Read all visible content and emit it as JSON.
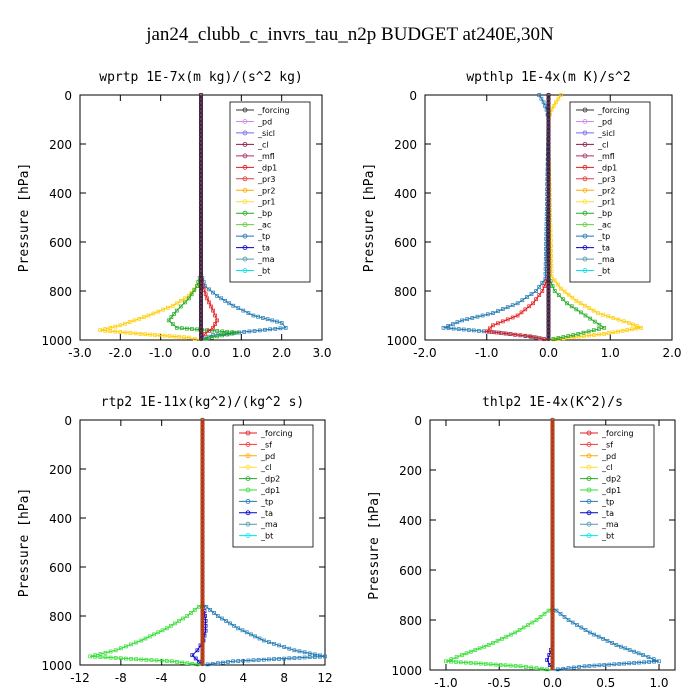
{
  "figure_title": "jan24_clubb_c_invrs_tau_n2p  BUDGET at240E,30N",
  "chart_data": [
    {
      "type": "line",
      "title": "wprtp   1E-7x(m kg)/(s^2 kg)",
      "ylabel": "Pressure [hPa]",
      "xlim": [
        -3.0,
        3.0
      ],
      "ylim": [
        1000,
        0
      ],
      "xticks": [
        "-3.0",
        "-2.0",
        "-1.0",
        "0.0",
        "1.0",
        "2.0",
        "3.0"
      ],
      "xtick_values": [
        -3,
        -2,
        -1,
        0,
        1,
        2,
        3
      ],
      "yticks": [
        "0",
        "200",
        "400",
        "600",
        "800",
        "1000"
      ],
      "ytick_values": [
        0,
        200,
        400,
        600,
        800,
        1000
      ],
      "legend": [
        "_forcing",
        "_pd",
        "_sicl",
        "_cl",
        "_mfl",
        "_dp1",
        "_pr3",
        "_pr2",
        "_pr1",
        "_bp",
        "_ac",
        "_tp",
        "_ta",
        "_ma",
        "_bt"
      ],
      "series": [
        {
          "name": "_pr2",
          "color": "#ffcc00",
          "pressure": [
            730,
            780,
            820,
            860,
            900,
            940,
            960,
            975,
            990,
            1000
          ],
          "values": [
            0,
            -0.1,
            -0.3,
            -0.7,
            -1.3,
            -2.0,
            -2.5,
            -1.5,
            -0.3,
            0
          ]
        },
        {
          "name": "_tp",
          "color": "#1f78b4",
          "pressure": [
            730,
            780,
            820,
            860,
            900,
            930,
            950,
            965,
            980,
            1000
          ],
          "values": [
            0,
            0.1,
            0.4,
            0.8,
            1.3,
            2.0,
            2.1,
            1.2,
            0.3,
            0
          ]
        },
        {
          "name": "_ac",
          "color": "#22aa22",
          "pressure": [
            730,
            780,
            830,
            880,
            920,
            950,
            970,
            985,
            1000
          ],
          "values": [
            0,
            -0.1,
            -0.3,
            -0.6,
            -0.8,
            -0.6,
            0.9,
            0.4,
            0
          ]
        },
        {
          "name": "_pr3",
          "color": "#e41a1c",
          "pressure": [
            730,
            780,
            830,
            880,
            920,
            950,
            975,
            1000
          ],
          "values": [
            0,
            0.05,
            0.15,
            0.3,
            0.4,
            0.3,
            0.1,
            0
          ]
        },
        {
          "name": "_mfl",
          "color": "#8b1a4a",
          "pressure": [
            0,
            200,
            400,
            600,
            800,
            900,
            1000
          ],
          "values": [
            0,
            0,
            0,
            0,
            0,
            0,
            0
          ]
        }
      ]
    },
    {
      "type": "line",
      "title": "wpthlp   1E-4x(m K)/s^2",
      "ylabel": "Pressure [hPa]",
      "xlim": [
        -2.0,
        2.0
      ],
      "ylim": [
        1000,
        0
      ],
      "xticks": [
        "-2.0",
        "-1.0",
        "0.0",
        "1.0",
        "2.0"
      ],
      "xtick_values": [
        -2,
        -1,
        0,
        1,
        2
      ],
      "yticks": [
        "0",
        "200",
        "400",
        "600",
        "800",
        "1000"
      ],
      "ytick_values": [
        0,
        200,
        400,
        600,
        800,
        1000
      ],
      "legend": [
        "_forcing",
        "_pd",
        "_sicl",
        "_cl",
        "_mfl",
        "_dp1",
        "_pr3",
        "_pr2",
        "_pr1",
        "_bp",
        "_ac",
        "_tp",
        "_ta",
        "_ma",
        "_bt"
      ],
      "series": [
        {
          "name": "_pr2",
          "color": "#ffcc00",
          "pressure": [
            0,
            30,
            60,
            100,
            200,
            740,
            790,
            840,
            890,
            930,
            950,
            975,
            1000
          ],
          "values": [
            0.2,
            0.12,
            0.05,
            0,
            0,
            0.05,
            0.2,
            0.45,
            0.8,
            1.3,
            1.5,
            0.9,
            0
          ]
        },
        {
          "name": "_tp",
          "color": "#1f78b4",
          "pressure": [
            0,
            30,
            60,
            100,
            750,
            800,
            850,
            890,
            920,
            950,
            970,
            990,
            1000
          ],
          "values": [
            -0.15,
            -0.08,
            -0.03,
            0,
            -0.05,
            -0.2,
            -0.5,
            -0.9,
            -1.4,
            -1.7,
            -0.8,
            -0.2,
            0
          ]
        },
        {
          "name": "_ac",
          "color": "#22aa22",
          "pressure": [
            740,
            800,
            850,
            900,
            950,
            980,
            1000
          ],
          "values": [
            0,
            0.1,
            0.3,
            0.6,
            0.9,
            0.4,
            0
          ]
        },
        {
          "name": "_pr3",
          "color": "#e41a1c",
          "pressure": [
            740,
            800,
            850,
            900,
            940,
            965,
            985,
            1000
          ],
          "values": [
            0,
            -0.1,
            -0.25,
            -0.5,
            -0.9,
            -1.0,
            -0.3,
            0
          ]
        },
        {
          "name": "_mfl",
          "color": "#8b1a4a",
          "pressure": [
            0,
            200,
            400,
            600,
            800,
            900,
            1000
          ],
          "values": [
            0,
            0,
            0,
            0,
            0,
            0,
            0
          ]
        }
      ]
    },
    {
      "type": "line",
      "title": "rtp2   1E-11x(kg^2)/(kg^2 s)",
      "ylabel": "Pressure [hPa]",
      "xlim": [
        -12,
        12
      ],
      "ylim": [
        1000,
        0
      ],
      "xticks": [
        "-12",
        "-8",
        "-4",
        "0",
        "4",
        "8",
        "12"
      ],
      "xtick_values": [
        -12,
        -8,
        -4,
        0,
        4,
        8,
        12
      ],
      "yticks": [
        "0",
        "200",
        "400",
        "600",
        "800",
        "1000"
      ],
      "ytick_values": [
        0,
        200,
        400,
        600,
        800,
        1000
      ],
      "legend": [
        "_forcing",
        "_sf",
        "_pd",
        "_cl",
        "_dp2",
        "_dp1",
        "_tp",
        "_ta",
        "_ma",
        "_bt"
      ],
      "series": [
        {
          "name": "_dp1",
          "color": "#33dd33",
          "pressure": [
            750,
            800,
            850,
            900,
            940,
            965,
            985,
            1000
          ],
          "values": [
            0,
            -1.5,
            -3.5,
            -6,
            -8.5,
            -11,
            -3,
            0
          ]
        },
        {
          "name": "_tp",
          "color": "#1f78b4",
          "pressure": [
            750,
            800,
            850,
            900,
            940,
            965,
            985,
            1000
          ],
          "values": [
            0,
            1.5,
            3.5,
            6,
            9,
            12,
            3,
            0
          ]
        },
        {
          "name": "_ta",
          "color": "#0000cc",
          "pressure": [
            780,
            820,
            860,
            900,
            940,
            960,
            1000
          ],
          "values": [
            0.2,
            0.3,
            0.3,
            0.1,
            -0.5,
            -1.0,
            0
          ]
        },
        {
          "name": "_forcing",
          "color": "#e41a1c",
          "pressure": [
            0,
            200,
            400,
            600,
            800,
            900,
            1000
          ],
          "values": [
            0,
            0,
            0,
            0,
            0,
            0,
            0
          ]
        }
      ]
    },
    {
      "type": "line",
      "title": "thlp2   1E-4x(K^2)/s",
      "ylabel": "Pressure [hPa]",
      "xlim": [
        -1.15,
        1.15
      ],
      "ylim": [
        1000,
        0
      ],
      "xticks": [
        "-1.0",
        "-0.5",
        "0.0",
        "0.5",
        "1.0"
      ],
      "xtick_values": [
        -1.0,
        -0.5,
        0,
        0.5,
        1.0
      ],
      "yticks": [
        "0",
        "200",
        "400",
        "600",
        "800",
        "1000"
      ],
      "ytick_values": [
        0,
        200,
        400,
        600,
        800,
        1000
      ],
      "legend": [
        "_forcing",
        "_sf",
        "_pd",
        "_cl",
        "_dp2",
        "_dp1",
        "_tp",
        "_ta",
        "_ma",
        "_bt"
      ],
      "series": [
        {
          "name": "_dp1",
          "color": "#33dd33",
          "pressure": [
            750,
            800,
            850,
            900,
            940,
            965,
            985,
            1000
          ],
          "values": [
            0,
            -0.15,
            -0.35,
            -0.6,
            -0.85,
            -1.0,
            -0.3,
            0
          ]
        },
        {
          "name": "_tp",
          "color": "#1f78b4",
          "pressure": [
            750,
            800,
            850,
            900,
            940,
            965,
            985,
            1000
          ],
          "values": [
            0,
            0.15,
            0.35,
            0.6,
            0.85,
            1.0,
            0.3,
            0
          ]
        },
        {
          "name": "_ta",
          "color": "#0000cc",
          "pressure": [
            900,
            940,
            960,
            1000
          ],
          "values": [
            0,
            -0.03,
            -0.05,
            0
          ]
        },
        {
          "name": "_forcing",
          "color": "#e41a1c",
          "pressure": [
            0,
            200,
            400,
            600,
            800,
            900,
            1000
          ],
          "values": [
            0,
            0,
            0,
            0,
            0,
            0,
            0
          ]
        }
      ]
    }
  ],
  "legend_colors": {
    "_forcing": "#333333",
    "_pd": "#cc88ee",
    "_sicl": "#7b68ee",
    "_cl": "#8b1a4a",
    "_mfl": "#b03060",
    "_dp1": "#e41a1c",
    "_pr3": "#e8383b",
    "_pr2": "#ffaa00",
    "_pr1": "#ffdd33",
    "_bp": "#22aa22",
    "_ac": "#66cc44",
    "_tp": "#1f78b4",
    "_ta": "#0000cc",
    "_ma": "#5599aa",
    "_bt": "#00e5ee",
    "_sf": "#e41a1c",
    "_dp2": "#22aa22"
  },
  "legend_colors_lower": {
    "_forcing": "#e41a1c",
    "_sf": "#ff3333",
    "_pd": "#ffaa00",
    "_cl": "#ffdd33",
    "_dp2": "#22aa22",
    "_dp1": "#33dd33",
    "_tp": "#1f78b4",
    "_ta": "#0000cc",
    "_ma": "#5599aa",
    "_bt": "#00e5ee"
  }
}
